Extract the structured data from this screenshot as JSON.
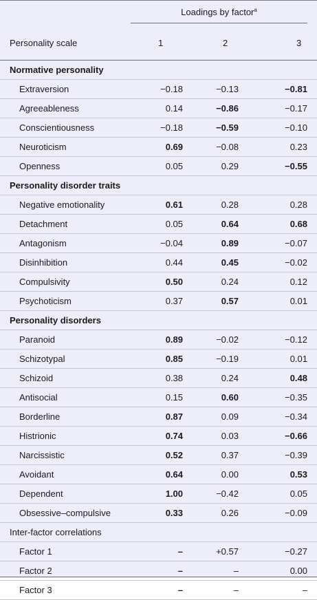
{
  "header": {
    "loadings_label": "Loadings by factor",
    "loadings_sup": "a",
    "scale_label": "Personality scale",
    "factor_cols": [
      "1",
      "2",
      "3"
    ]
  },
  "sections": [
    {
      "title": "Normative personality",
      "rows": [
        {
          "name": "Extraversion",
          "v": [
            "−0.18",
            "−0.13",
            "−0.81"
          ],
          "bold": [
            false,
            false,
            true
          ]
        },
        {
          "name": "Agreeableness",
          "v": [
            "0.14",
            "−0.86",
            "−0.17"
          ],
          "bold": [
            false,
            true,
            false
          ]
        },
        {
          "name": "Conscientiousness",
          "v": [
            "−0.18",
            "−0.59",
            "−0.10"
          ],
          "bold": [
            false,
            true,
            false
          ]
        },
        {
          "name": "Neuroticism",
          "v": [
            "0.69",
            "−0.08",
            "0.23"
          ],
          "bold": [
            true,
            false,
            false
          ]
        },
        {
          "name": "Openness",
          "v": [
            "0.05",
            "0.29",
            "−0.55"
          ],
          "bold": [
            false,
            false,
            true
          ]
        }
      ]
    },
    {
      "title": "Personality disorder traits",
      "rows": [
        {
          "name": "Negative emotionality",
          "v": [
            "0.61",
            "0.28",
            "0.28"
          ],
          "bold": [
            true,
            false,
            false
          ]
        },
        {
          "name": "Detachment",
          "v": [
            "0.05",
            "0.64",
            "0.68"
          ],
          "bold": [
            false,
            true,
            true
          ]
        },
        {
          "name": "Antagonism",
          "v": [
            "−0.04",
            "0.89",
            "−0.07"
          ],
          "bold": [
            false,
            true,
            false
          ]
        },
        {
          "name": "Disinhibition",
          "v": [
            "0.44",
            "0.45",
            "−0.02"
          ],
          "bold": [
            false,
            true,
            false
          ]
        },
        {
          "name": "Compulsivity",
          "v": [
            "0.50",
            "0.24",
            "0.12"
          ],
          "bold": [
            true,
            false,
            false
          ]
        },
        {
          "name": "Psychoticism",
          "v": [
            "0.37",
            "0.57",
            "0.01"
          ],
          "bold": [
            false,
            true,
            false
          ]
        }
      ]
    },
    {
      "title": "Personality disorders",
      "rows": [
        {
          "name": "Paranoid",
          "v": [
            "0.89",
            "−0.02",
            "−0.12"
          ],
          "bold": [
            true,
            false,
            false
          ]
        },
        {
          "name": "Schizotypal",
          "v": [
            "0.85",
            "−0.19",
            "0.01"
          ],
          "bold": [
            true,
            false,
            false
          ]
        },
        {
          "name": "Schizoid",
          "v": [
            "0.38",
            "0.24",
            "0.48"
          ],
          "bold": [
            false,
            false,
            true
          ]
        },
        {
          "name": "Antisocial",
          "v": [
            "0.15",
            "0.60",
            "−0.35"
          ],
          "bold": [
            false,
            true,
            false
          ]
        },
        {
          "name": "Borderline",
          "v": [
            "0.87",
            "0.09",
            "−0.34"
          ],
          "bold": [
            true,
            false,
            false
          ]
        },
        {
          "name": "Histrionic",
          "v": [
            "0.74",
            "0.03",
            "−0.66"
          ],
          "bold": [
            true,
            false,
            true
          ]
        },
        {
          "name": "Narcissistic",
          "v": [
            "0.52",
            "0.37",
            "−0.39"
          ],
          "bold": [
            true,
            false,
            false
          ]
        },
        {
          "name": "Avoidant",
          "v": [
            "0.64",
            "0.00",
            "0.53"
          ],
          "bold": [
            true,
            false,
            true
          ]
        },
        {
          "name": "Dependent",
          "v": [
            "1.00",
            "−0.42",
            "0.05"
          ],
          "bold": [
            true,
            false,
            false
          ]
        },
        {
          "name": "Obsessive–compulsive",
          "v": [
            "0.33",
            "0.26",
            "−0.09"
          ],
          "bold": [
            true,
            false,
            false
          ]
        }
      ]
    }
  ],
  "correlations": {
    "title": "Inter-factor correlations",
    "rows": [
      {
        "name": "Factor 1",
        "v": [
          "–",
          "+0.57",
          "−0.27"
        ],
        "bold": [
          true,
          false,
          false
        ]
      },
      {
        "name": "Factor 2",
        "v": [
          "–",
          "–",
          "0.00"
        ],
        "bold": [
          true,
          false,
          false
        ]
      },
      {
        "name": "Factor 3",
        "v": [
          "–",
          "–",
          "–"
        ],
        "bold": [
          true,
          false,
          false
        ]
      }
    ]
  }
}
